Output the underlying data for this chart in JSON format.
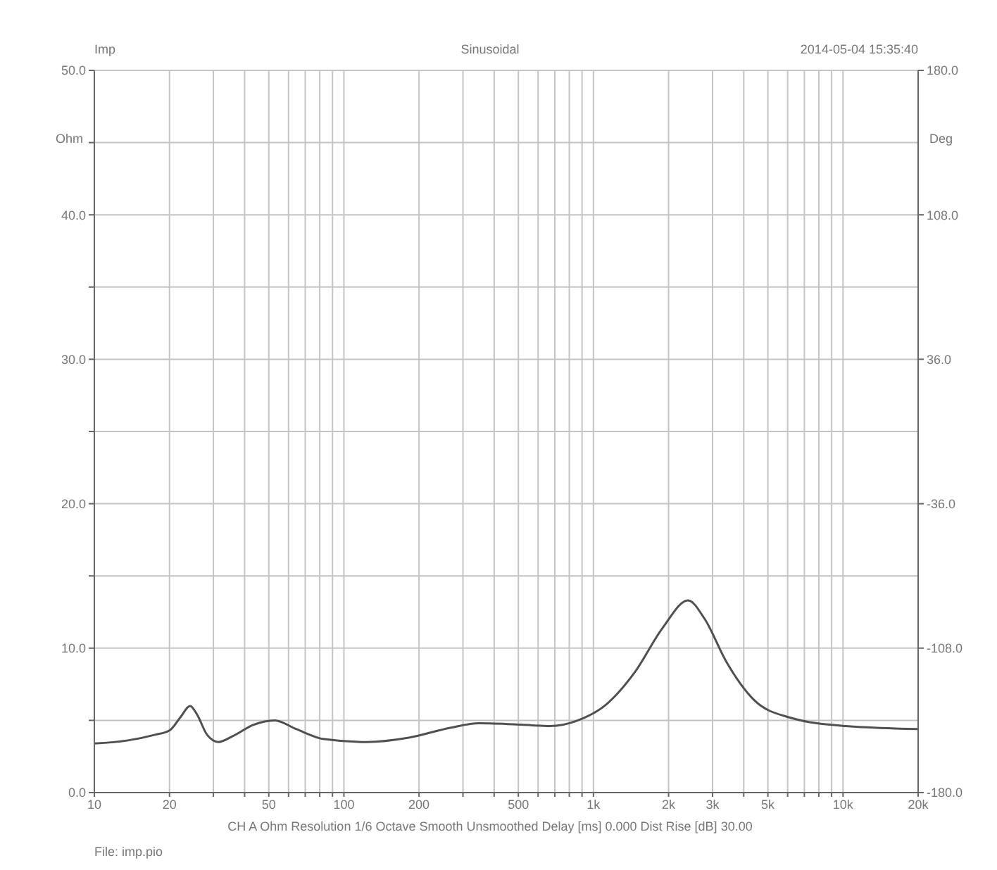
{
  "chart_data": {
    "type": "line",
    "title": "Sinusoidal",
    "ylabel": "Ohm",
    "y2label": "Deg",
    "annotations": [
      "Imp",
      "2014-05-04 15:35:40",
      "CH A  Ohm  Resolution 1/6 Octave  Smooth Unsmoothed  Delay [ms] 0.000  Dist Rise [dB] 30.00",
      "File: imp.pio"
    ],
    "log": "x",
    "grid": true,
    "marker": "none",
    "line_style": "solid",
    "xlim": [
      10,
      20000
    ],
    "xticks": [
      10,
      20,
      {
        "value": 30,
        "label": null
      },
      {
        "value": 40,
        "label": null
      },
      50,
      {
        "value": 60,
        "label": null
      },
      {
        "value": 70,
        "label": null
      },
      {
        "value": 80,
        "label": null
      },
      {
        "value": 90,
        "label": null
      },
      100,
      200,
      {
        "value": 300,
        "label": null
      },
      {
        "value": 400,
        "label": null
      },
      500,
      {
        "value": 600,
        "label": null
      },
      {
        "value": 700,
        "label": null
      },
      {
        "value": 800,
        "label": null
      },
      {
        "value": 900,
        "label": null
      },
      {
        "value": 1000,
        "label": "1k"
      },
      {
        "value": 2000,
        "label": "2k"
      },
      {
        "value": 3000,
        "label": "3k"
      },
      {
        "value": 4000,
        "label": null
      },
      {
        "value": 5000,
        "label": "5k"
      },
      {
        "value": 6000,
        "label": null
      },
      {
        "value": 7000,
        "label": null
      },
      {
        "value": 8000,
        "label": null
      },
      {
        "value": 9000,
        "label": null
      },
      {
        "value": 10000,
        "label": "10k"
      },
      {
        "value": 20000,
        "label": "20k"
      }
    ],
    "ylim": [
      0,
      50
    ],
    "yticks": [
      {
        "value": 0,
        "label": "0.0"
      },
      {
        "value": 5,
        "label": null
      },
      {
        "value": 10,
        "label": "10.0"
      },
      {
        "value": 15,
        "label": null
      },
      {
        "value": 20,
        "label": "20.0"
      },
      {
        "value": 25,
        "label": null
      },
      {
        "value": 30,
        "label": "30.0"
      },
      {
        "value": 35,
        "label": null
      },
      {
        "value": 40,
        "label": "40.0"
      },
      {
        "value": 45,
        "label": null
      },
      {
        "value": 50,
        "label": "50.0"
      }
    ],
    "y2lim": [
      -180,
      180
    ],
    "y2ticks": [
      {
        "value": -180,
        "label": "-180.0"
      },
      {
        "value": -108,
        "label": "-108.0"
      },
      {
        "value": -36,
        "label": "-36.0"
      },
      {
        "value": 36,
        "label": "36.0"
      },
      {
        "value": 108,
        "label": "108.0"
      },
      {
        "value": 180,
        "label": "180.0"
      }
    ],
    "series": [
      {
        "color": "#505050",
        "x": [
          10,
          13.5,
          17.5,
          20,
          22.1,
          24.2,
          25.8,
          28.3,
          31.4,
          35.8,
          43.5,
          52.8,
          64.3,
          83.4,
          123,
          182,
          269,
          348,
          515,
          668,
          867,
          1125,
          1460,
          1893,
          2393,
          2795,
          3396,
          4406,
          6100,
          10260,
          20000
        ],
        "values": [
          3.4,
          3.6,
          4.0,
          4.3,
          5.2,
          6.0,
          5.4,
          4.0,
          3.5,
          3.9,
          4.7,
          5.0,
          4.4,
          3.7,
          3.5,
          3.8,
          4.5,
          4.8,
          4.7,
          4.6,
          5.0,
          6.1,
          8.3,
          11.4,
          13.3,
          12.0,
          9.1,
          6.4,
          5.2,
          4.6,
          4.4
        ]
      }
    ]
  }
}
